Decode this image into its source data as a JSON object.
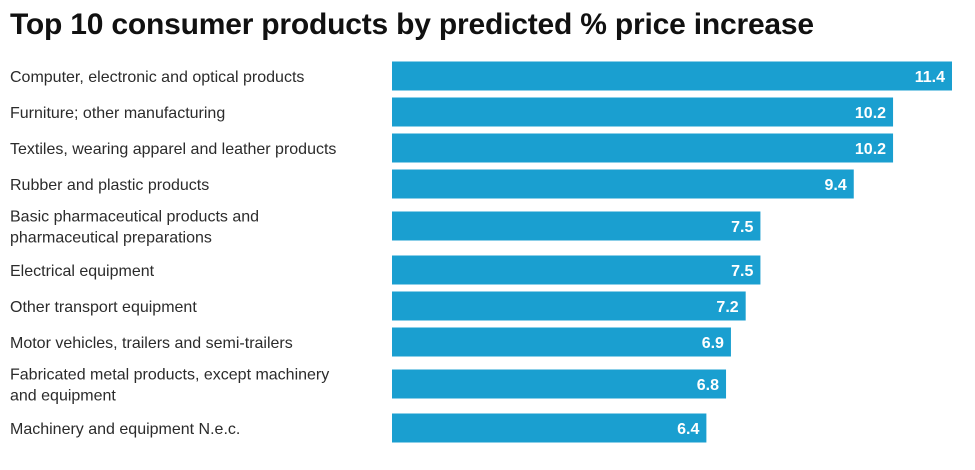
{
  "colors": {
    "bar": "#1a9fd0",
    "label_text": "#2b2b2b",
    "value_text": "#ffffff"
  },
  "chart_data": {
    "type": "bar",
    "orientation": "horizontal",
    "title": "Top 10 consumer products by predicted % price increase",
    "categories": [
      "Computer, electronic and optical products",
      "Furniture; other manufacturing",
      "Textiles, wearing apparel and leather products",
      "Rubber and plastic products",
      "Basic pharmaceutical products and pharmaceutical preparations",
      "Electrical equipment",
      "Other transport equipment",
      "Motor vehicles, trailers and semi-trailers",
      "Fabricated metal products, except machinery and equipment",
      "Machinery and equipment N.e.c."
    ],
    "category_lines": [
      [
        "Computer, electronic and optical products"
      ],
      [
        "Furniture; other manufacturing"
      ],
      [
        "Textiles, wearing apparel and leather products"
      ],
      [
        "Rubber and plastic products"
      ],
      [
        "Basic pharmaceutical products and",
        "pharmaceutical preparations"
      ],
      [
        "Electrical equipment"
      ],
      [
        "Other transport equipment"
      ],
      [
        "Motor vehicles, trailers and semi-trailers"
      ],
      [
        "Fabricated metal products, except machinery",
        "and equipment"
      ],
      [
        "Machinery and equipment N.e.c."
      ]
    ],
    "values": [
      11.4,
      10.2,
      10.2,
      9.4,
      7.5,
      7.5,
      7.2,
      6.9,
      6.8,
      6.4
    ],
    "value_labels": [
      "11.4",
      "10.2",
      "10.2",
      "9.4",
      "7.5",
      "7.5",
      "7.2",
      "6.9",
      "6.8",
      "6.4"
    ],
    "xlim": [
      0,
      11.4
    ],
    "grid": false,
    "legend": "none"
  }
}
